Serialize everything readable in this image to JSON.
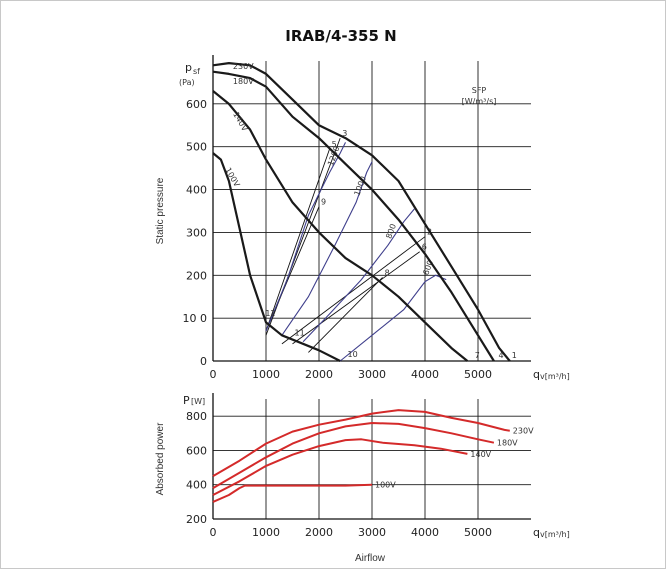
{
  "title": "IRAB/4-355 N",
  "chart_data": [
    {
      "type": "line",
      "name": "static-pressure",
      "ylabel": "Static pressure",
      "y_unit_symbol": "p",
      "y_unit_sub": "sf",
      "y_unit": "(Pa)",
      "x_unit_symbol": "q",
      "x_unit": "v[m³/h]",
      "xlim": [
        0,
        6000
      ],
      "ylim": [
        0,
        700
      ],
      "x_ticks": [
        "0",
        "1000",
        "2000",
        "3000",
        "4000",
        "5000"
      ],
      "y_ticks": [
        "0",
        "10 0",
        "200",
        "300",
        "400",
        "500",
        "600"
      ],
      "grid": true,
      "sfp_label": "SFP",
      "sfp_unit": "[W/m³/s]",
      "series": [
        {
          "name": "230V",
          "points": [
            [
              0,
              690
            ],
            [
              300,
              695
            ],
            [
              700,
              690
            ],
            [
              1000,
              670
            ],
            [
              1500,
              610
            ],
            [
              2000,
              550
            ],
            [
              2500,
              520
            ],
            [
              3000,
              480
            ],
            [
              3500,
              420
            ],
            [
              4000,
              320
            ],
            [
              4500,
              220
            ],
            [
              5000,
              120
            ],
            [
              5400,
              30
            ],
            [
              5600,
              0
            ]
          ]
        },
        {
          "name": "180V",
          "points": [
            [
              0,
              675
            ],
            [
              300,
              670
            ],
            [
              700,
              660
            ],
            [
              1000,
              640
            ],
            [
              1500,
              570
            ],
            [
              2000,
              520
            ],
            [
              2500,
              460
            ],
            [
              3000,
              400
            ],
            [
              3500,
              330
            ],
            [
              4000,
              250
            ],
            [
              4500,
              160
            ],
            [
              5000,
              60
            ],
            [
              5300,
              0
            ]
          ]
        },
        {
          "name": "140V",
          "points": [
            [
              0,
              630
            ],
            [
              300,
              600
            ],
            [
              700,
              540
            ],
            [
              1000,
              470
            ],
            [
              1500,
              370
            ],
            [
              2000,
              300
            ],
            [
              2500,
              240
            ],
            [
              3000,
              200
            ],
            [
              3500,
              150
            ],
            [
              4000,
              90
            ],
            [
              4500,
              30
            ],
            [
              4800,
              0
            ]
          ]
        },
        {
          "name": "100V",
          "points": [
            [
              0,
              485
            ],
            [
              150,
              470
            ],
            [
              300,
              420
            ],
            [
              500,
              310
            ],
            [
              700,
              200
            ],
            [
              1000,
              90
            ],
            [
              1300,
              60
            ],
            [
              1600,
              45
            ],
            [
              2000,
              25
            ],
            [
              2400,
              0
            ]
          ]
        }
      ],
      "sfp_curves": [
        {
          "label": "1200",
          "points": [
            [
              1000,
              70
            ],
            [
              1400,
              190
            ],
            [
              1800,
              340
            ],
            [
              2200,
              440
            ],
            [
              2400,
              485
            ],
            [
              2500,
              510
            ]
          ]
        },
        {
          "label": "1000",
          "points": [
            [
              1300,
              60
            ],
            [
              1800,
              150
            ],
            [
              2300,
              270
            ],
            [
              2700,
              370
            ],
            [
              2900,
              440
            ],
            [
              3000,
              465
            ]
          ]
        },
        {
          "label": "800",
          "points": [
            [
              1700,
              45
            ],
            [
              2200,
              110
            ],
            [
              2800,
              190
            ],
            [
              3300,
              270
            ],
            [
              3600,
              325
            ],
            [
              3800,
              355
            ]
          ]
        },
        {
          "label": "600",
          "points": [
            [
              2400,
              0
            ],
            [
              3000,
              60
            ],
            [
              3600,
              120
            ],
            [
              4000,
              185
            ],
            [
              4200,
              200
            ],
            [
              4400,
              190
            ]
          ]
        }
      ],
      "system_lines": [
        {
          "label": "3",
          "points": [
            [
              1000,
              60
            ],
            [
              2400,
              520
            ]
          ]
        },
        {
          "label": "5",
          "points": [
            [
              1000,
              70
            ],
            [
              2200,
              495
            ]
          ]
        },
        {
          "label": "9",
          "points": [
            [
              1000,
              70
            ],
            [
              2000,
              360
            ]
          ]
        },
        {
          "label": "2",
          "points": [
            [
              1300,
              40
            ],
            [
              4000,
              290
            ]
          ]
        },
        {
          "label": "6",
          "points": [
            [
              1500,
              40
            ],
            [
              3900,
              255
            ]
          ]
        },
        {
          "label": "8",
          "points": [
            [
              1800,
              20
            ],
            [
              3200,
              195
            ]
          ]
        }
      ],
      "point_labels": [
        {
          "text": "1",
          "x": 5600,
          "y": 2
        },
        {
          "text": "4",
          "x": 5350,
          "y": 2
        },
        {
          "text": "7",
          "x": 4900,
          "y": 2
        },
        {
          "text": "10",
          "x": 2500,
          "y": 5
        },
        {
          "text": "11",
          "x": 1500,
          "y": 55
        },
        {
          "text": "12",
          "x": 950,
          "y": 100
        }
      ]
    },
    {
      "type": "line",
      "name": "absorbed-power",
      "ylabel": "Absorbed power",
      "y_unit_symbol": "P",
      "y_unit": "[W]",
      "x_unit_symbol": "q",
      "x_unit": "v[m³/h]",
      "xlabel": "Airflow",
      "xlim": [
        0,
        6000
      ],
      "ylim": [
        200,
        900
      ],
      "x_ticks": [
        "0",
        "1000",
        "2000",
        "3000",
        "4000",
        "5000"
      ],
      "y_ticks": [
        "200",
        "400",
        "600",
        "800"
      ],
      "grid": true,
      "series": [
        {
          "name": "230V",
          "points": [
            [
              0,
              450
            ],
            [
              500,
              540
            ],
            [
              1000,
              640
            ],
            [
              1500,
              710
            ],
            [
              2000,
              750
            ],
            [
              2500,
              780
            ],
            [
              3000,
              815
            ],
            [
              3500,
              835
            ],
            [
              4000,
              825
            ],
            [
              4500,
              790
            ],
            [
              5000,
              760
            ],
            [
              5500,
              720
            ],
            [
              5600,
              715
            ]
          ]
        },
        {
          "name": "180V",
          "points": [
            [
              0,
              380
            ],
            [
              500,
              470
            ],
            [
              1000,
              560
            ],
            [
              1500,
              640
            ],
            [
              2000,
              700
            ],
            [
              2500,
              740
            ],
            [
              3000,
              760
            ],
            [
              3500,
              755
            ],
            [
              4000,
              730
            ],
            [
              4500,
              700
            ],
            [
              5000,
              665
            ],
            [
              5300,
              645
            ]
          ]
        },
        {
          "name": "140V",
          "points": [
            [
              0,
              340
            ],
            [
              500,
              420
            ],
            [
              1000,
              510
            ],
            [
              1500,
              575
            ],
            [
              2000,
              625
            ],
            [
              2500,
              660
            ],
            [
              2800,
              665
            ],
            [
              3200,
              645
            ],
            [
              3800,
              630
            ],
            [
              4300,
              610
            ],
            [
              4800,
              580
            ]
          ]
        },
        {
          "name": "100V",
          "points": [
            [
              0,
              300
            ],
            [
              300,
              340
            ],
            [
              500,
              380
            ],
            [
              600,
              395
            ],
            [
              1000,
              395
            ],
            [
              1500,
              395
            ],
            [
              2000,
              395
            ],
            [
              2500,
              395
            ],
            [
              3000,
              400
            ]
          ]
        }
      ]
    }
  ],
  "colors": {
    "pressure": "#1a1a1a",
    "sfp": "#3f3f8c",
    "power": "#d42a2a",
    "grid": "#1a1a1a"
  }
}
